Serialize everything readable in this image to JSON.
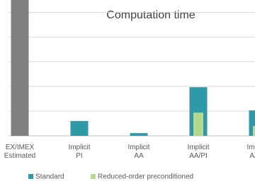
{
  "chart_data": {
    "type": "bar",
    "title": "Computation time",
    "categories": [
      "EX/IMEX Estimated",
      "Implicit PI",
      "Implicit AA",
      "Implicit AA/PI",
      "Implicit AA/C"
    ],
    "series": [
      {
        "name": "Standard",
        "color": "#2e9aa8",
        "point_colors": [
          "#808080",
          "#2e9aa8",
          "#2e9aa8",
          "#2e9aa8",
          "#2e9aa8"
        ],
        "values": [
          5.5,
          0.6,
          0.11,
          1.97,
          1.03
        ]
      },
      {
        "name": "Reduced-order preconditioned",
        "color": "#b5d98f",
        "values": [
          null,
          null,
          null,
          0.94,
          0.4
        ]
      }
    ],
    "ylim": [
      0,
      5.5
    ],
    "yticks": [
      0,
      1,
      2,
      3,
      4,
      5
    ],
    "grid": true,
    "legend": "bottom"
  }
}
